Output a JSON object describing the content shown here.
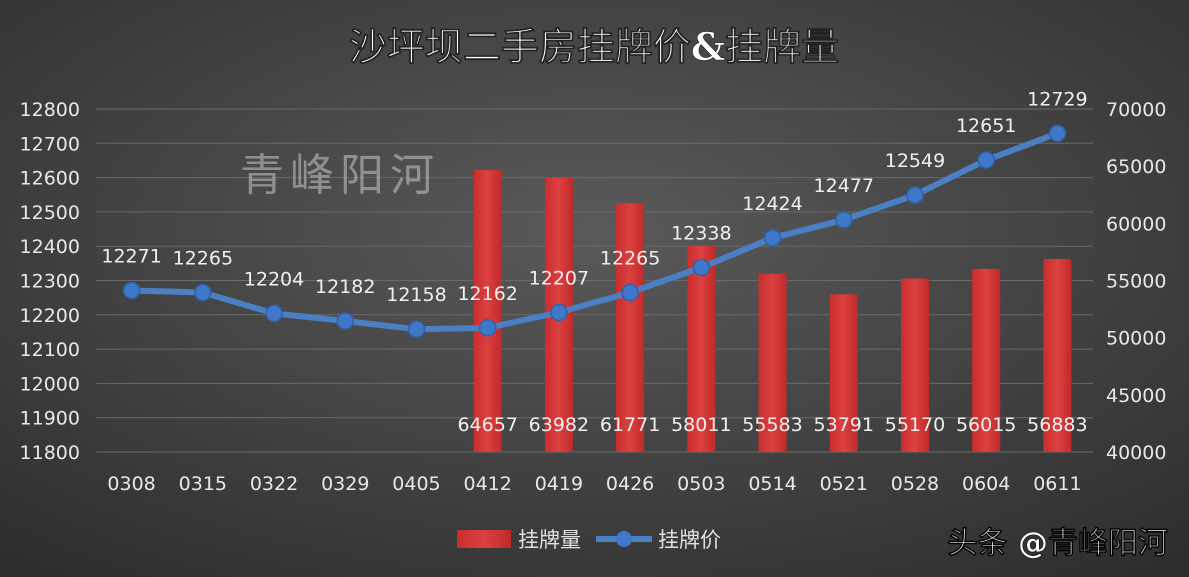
{
  "chart_data": {
    "type": "bar+line",
    "title": "沙坪坝二手房挂牌价&挂牌量",
    "categories": [
      "0308",
      "0315",
      "0322",
      "0329",
      "0405",
      "0412",
      "0419",
      "0426",
      "0503",
      "0514",
      "0521",
      "0528",
      "0604",
      "0611"
    ],
    "series": [
      {
        "name": "挂牌量",
        "type": "bar",
        "axis": "right",
        "color": "#d23a3a",
        "values": [
          null,
          null,
          null,
          null,
          null,
          64657,
          63982,
          61771,
          58011,
          55583,
          53791,
          55170,
          56015,
          56883
        ]
      },
      {
        "name": "挂牌价",
        "type": "line",
        "axis": "left",
        "color": "#4a7fc4",
        "values": [
          12271,
          12265,
          12204,
          12182,
          12158,
          12162,
          12207,
          12265,
          12338,
          12424,
          12477,
          12549,
          12651,
          12729
        ]
      }
    ],
    "left_axis": {
      "ylim": [
        11800,
        12800
      ],
      "ticks": [
        11800,
        11900,
        12000,
        12100,
        12200,
        12300,
        12400,
        12500,
        12600,
        12700,
        12800
      ]
    },
    "right_axis": {
      "ylim": [
        40000,
        70000
      ],
      "ticks": [
        40000,
        45000,
        50000,
        55000,
        60000,
        65000,
        70000
      ]
    },
    "grid": true,
    "legend": "bottom",
    "watermark": "青峰阳河",
    "credit": "头条 @青峰阳河"
  }
}
